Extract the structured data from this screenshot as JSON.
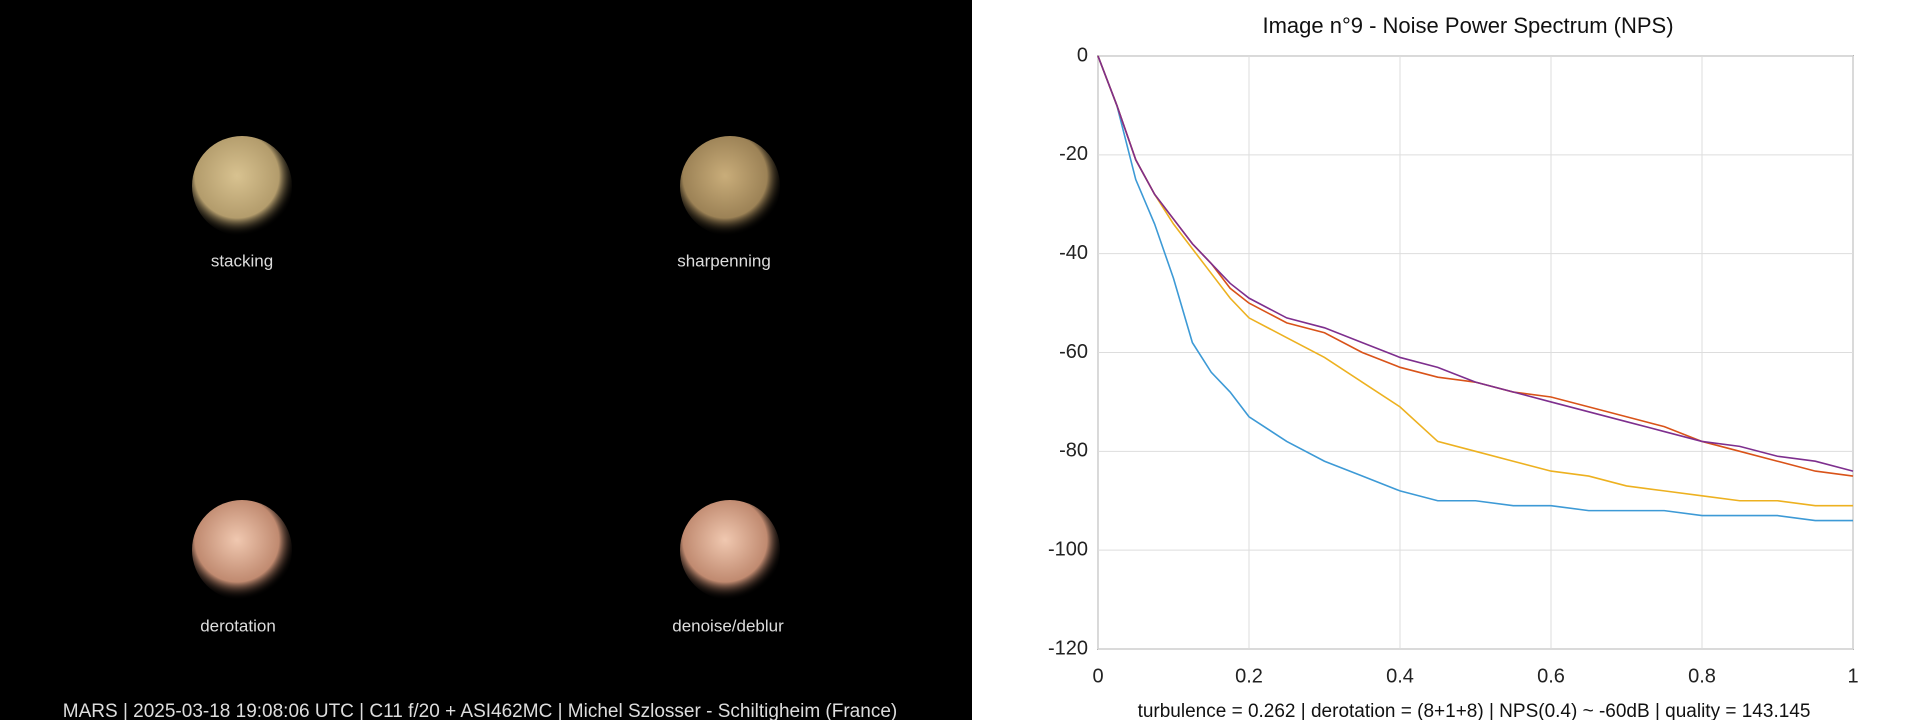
{
  "panels": [
    {
      "label": "stacking"
    },
    {
      "label": "sharpenning"
    },
    {
      "label": "derotation"
    },
    {
      "label": "denoise/deblur"
    }
  ],
  "caption": "MARS | 2025-03-18  19:08:06 UTC | C11 f/20 + ASI462MC | Michel Szlosser - Schiltigheim (France)",
  "chart_data": {
    "type": "line",
    "title": "Image n°9 - Noise Power Spectrum (NPS)",
    "annotation": "turbulence = 0.262 | derotation = (8+1+8) | NPS(0.4) ~ -60dB |  quality = 143.145",
    "x": [
      0,
      0.025,
      0.05,
      0.075,
      0.1,
      0.125,
      0.15,
      0.175,
      0.2,
      0.25,
      0.3,
      0.35,
      0.4,
      0.45,
      0.5,
      0.55,
      0.6,
      0.65,
      0.7,
      0.75,
      0.8,
      0.85,
      0.9,
      0.95,
      1
    ],
    "series": [
      {
        "color": "#3d9ad6",
        "values": [
          0,
          -10,
          -25,
          -34,
          -45,
          -58,
          -64,
          -68,
          -73,
          -78,
          -82,
          -85,
          -88,
          -90,
          -90,
          -91,
          -91,
          -92,
          -92,
          -92,
          -93,
          -93,
          -93,
          -94,
          -94
        ]
      },
      {
        "color": "#edb120",
        "values": [
          0,
          -10,
          -21,
          -28,
          -34,
          -39,
          -44,
          -49,
          -53,
          -57,
          -61,
          -66,
          -71,
          -78,
          -80,
          -82,
          -84,
          -85,
          -87,
          -88,
          -89,
          -90,
          -90,
          -91,
          -91
        ]
      },
      {
        "color": "#d95319",
        "values": [
          0,
          -10,
          -21,
          -28,
          -33,
          -38,
          -42,
          -47,
          -50,
          -54,
          -56,
          -60,
          -63,
          -65,
          -66,
          -68,
          -69,
          -71,
          -73,
          -75,
          -78,
          -80,
          -82,
          -84,
          -85
        ]
      },
      {
        "color": "#7e2f8e",
        "values": [
          0,
          -10,
          -21,
          -28,
          -33,
          -38,
          -42,
          -46,
          -49,
          -53,
          -55,
          -58,
          -61,
          -63,
          -66,
          -68,
          -70,
          -72,
          -74,
          -76,
          -78,
          -79,
          -81,
          -82,
          -84
        ]
      }
    ],
    "xlim": [
      0,
      1
    ],
    "xticks": [
      0,
      0.2,
      0.4,
      0.6,
      0.8,
      1
    ],
    "ylim": [
      -120,
      0
    ],
    "yticks": [
      -120,
      -100,
      -80,
      -60,
      -40,
      -20,
      0
    ],
    "grid": true
  }
}
